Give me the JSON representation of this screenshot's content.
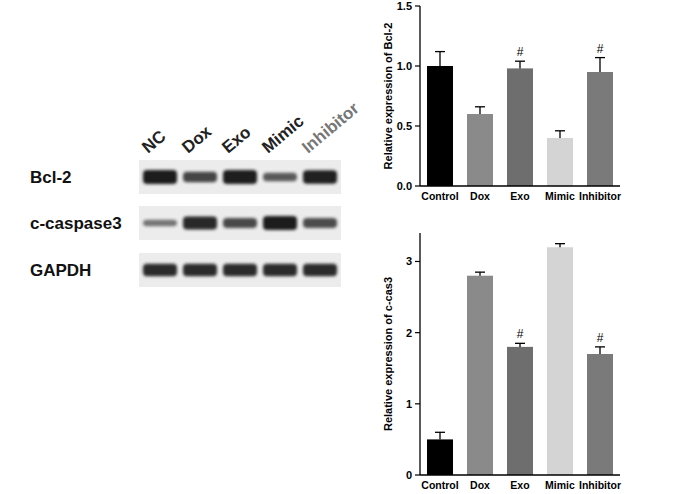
{
  "chart_data": [
    {
      "type": "bar",
      "y_label": "Relative expression of Bcl-2",
      "categories": [
        "Control",
        "Dox",
        "Exo",
        "Mimic",
        "Inhibitor"
      ],
      "values": [
        1.0,
        0.6,
        0.98,
        0.4,
        0.95
      ],
      "errors": [
        0.12,
        0.06,
        0.06,
        0.06,
        0.12
      ],
      "colors": [
        "#000000",
        "#8a8a8a",
        "#6e6e6e",
        "#d4d4d4",
        "#7a7a7a"
      ],
      "ylim": [
        0,
        1.5
      ],
      "yticks": [
        {
          "value": 0,
          "label": "0.0"
        },
        {
          "value": 0.5,
          "label": "0.5"
        },
        {
          "value": 1,
          "label": "1.0"
        },
        {
          "value": 1.5,
          "label": "1.5"
        }
      ],
      "annotations": [
        {
          "category": "Exo",
          "text": "#"
        },
        {
          "category": "Inhibitor",
          "text": "#"
        }
      ]
    },
    {
      "type": "bar",
      "y_label": "Relative expression of c-cas3",
      "categories": [
        "Control",
        "Dox",
        "Exo",
        "Mimic",
        "Inhibitor"
      ],
      "values": [
        0.5,
        2.8,
        1.8,
        3.2,
        1.7
      ],
      "errors": [
        0.1,
        0.05,
        0.05,
        0.05,
        0.1
      ],
      "colors": [
        "#000000",
        "#8a8a8a",
        "#6e6e6e",
        "#d4d4d4",
        "#7a7a7a"
      ],
      "ylim": [
        0,
        3.4
      ],
      "yticks": [
        0,
        1,
        2,
        3
      ],
      "annotations": [
        {
          "category": "Exo",
          "text": "#"
        },
        {
          "category": "Inhibitor",
          "text": "#"
        }
      ]
    }
  ],
  "blot": {
    "lanes": [
      "NC",
      "Dox",
      "Exo",
      "Mimic",
      "Inhibitor"
    ],
    "rows": [
      "Bcl-2",
      "c-caspase3",
      "GAPDH"
    ]
  }
}
